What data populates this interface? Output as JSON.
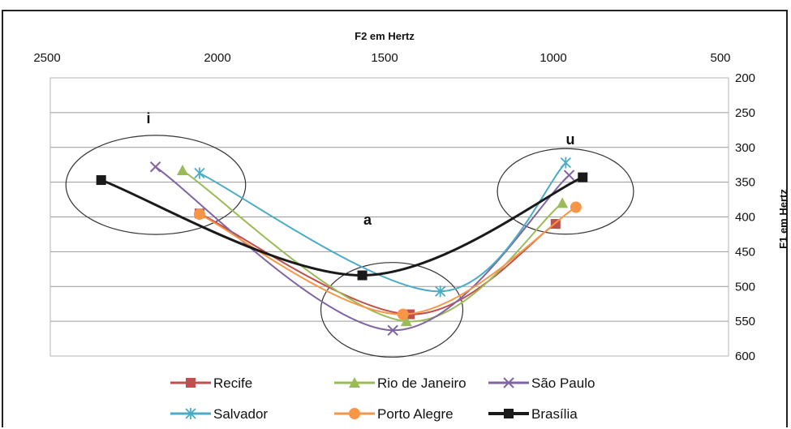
{
  "chart_data": {
    "type": "line",
    "xlabel": "F2 em Hertz",
    "ylabel": "F1 em Hertz",
    "xlim": [
      2500,
      500
    ],
    "ylim": [
      200,
      600
    ],
    "x_reversed": true,
    "y_reversed": true,
    "x_ticks": [
      "2500",
      "2000",
      "1500",
      "1000",
      "500"
    ],
    "y_ticks": [
      "200",
      "250",
      "300",
      "350",
      "400",
      "450",
      "500",
      "550",
      "600"
    ],
    "grid": "horizontal",
    "legend_position": "bottom",
    "vowel_labels": [
      {
        "label": "i",
        "x": 2150,
        "y": 260,
        "rx": 310,
        "ry": 110
      },
      {
        "label": "a",
        "x": 1500,
        "y": 520,
        "rx": 245,
        "ry": 105
      },
      {
        "label": "u",
        "x": 900,
        "y": 350,
        "rx": 235,
        "ry": 95
      }
    ],
    "series": [
      {
        "name": "Recife",
        "color": "#c0504d",
        "marker": "square",
        "points": [
          [
            2060,
            395
          ],
          [
            1440,
            540
          ],
          [
            1010,
            410
          ]
        ]
      },
      {
        "name": "Rio de Janeiro",
        "color": "#9bbb59",
        "marker": "triangle",
        "points": [
          [
            2110,
            333
          ],
          [
            1450,
            550
          ],
          [
            990,
            380
          ]
        ]
      },
      {
        "name": "São Paulo",
        "color": "#8064a2",
        "marker": "x",
        "points": [
          [
            2190,
            328
          ],
          [
            1490,
            563
          ],
          [
            970,
            340
          ]
        ]
      },
      {
        "name": "Salvador",
        "color": "#4bacc6",
        "marker": "star",
        "points": [
          [
            2060,
            337
          ],
          [
            1350,
            507
          ],
          [
            980,
            322
          ]
        ]
      },
      {
        "name": "Porto Alegre",
        "color": "#f79646",
        "marker": "circle",
        "points": [
          [
            2060,
            396
          ],
          [
            1460,
            540
          ],
          [
            950,
            386
          ]
        ]
      },
      {
        "name": "Brasília",
        "color": "#1a1a1a",
        "marker": "square",
        "width": 3,
        "points": [
          [
            2350,
            347
          ],
          [
            1580,
            484
          ],
          [
            930,
            343
          ]
        ]
      }
    ]
  }
}
